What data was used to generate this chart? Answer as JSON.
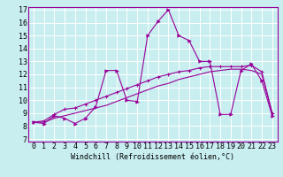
{
  "xlabel": "Windchill (Refroidissement éolien,°C)",
  "bg_color": "#c8eef0",
  "line_color": "#990099",
  "xlim": [
    -0.5,
    23.5
  ],
  "ylim": [
    6.8,
    17.2
  ],
  "xticks": [
    0,
    1,
    2,
    3,
    4,
    5,
    6,
    7,
    8,
    9,
    10,
    11,
    12,
    13,
    14,
    15,
    16,
    17,
    18,
    19,
    20,
    21,
    22,
    23
  ],
  "yticks": [
    7,
    8,
    9,
    10,
    11,
    12,
    13,
    14,
    15,
    16,
    17
  ],
  "series1_x": [
    0,
    1,
    2,
    3,
    4,
    5,
    6,
    7,
    8,
    9,
    10,
    11,
    12,
    13,
    14,
    15,
    16,
    17,
    18,
    19,
    20,
    21,
    22,
    23
  ],
  "series1_y": [
    8.3,
    8.2,
    8.8,
    8.6,
    8.2,
    8.6,
    9.5,
    12.3,
    12.3,
    10.0,
    9.9,
    15.0,
    16.1,
    17.0,
    15.0,
    14.6,
    13.0,
    13.0,
    8.9,
    8.9,
    12.3,
    12.8,
    11.5,
    8.8
  ],
  "series2_x": [
    0,
    1,
    2,
    3,
    4,
    5,
    6,
    7,
    8,
    9,
    10,
    11,
    12,
    13,
    14,
    15,
    16,
    17,
    18,
    19,
    20,
    21,
    22,
    23
  ],
  "series2_y": [
    8.3,
    8.4,
    8.9,
    9.3,
    9.4,
    9.7,
    10.0,
    10.3,
    10.6,
    10.9,
    11.2,
    11.5,
    11.8,
    12.0,
    12.2,
    12.3,
    12.5,
    12.6,
    12.6,
    12.6,
    12.6,
    12.7,
    12.2,
    9.0
  ],
  "series3_x": [
    0,
    1,
    2,
    3,
    4,
    5,
    6,
    7,
    8,
    9,
    10,
    11,
    12,
    13,
    14,
    15,
    16,
    17,
    18,
    19,
    20,
    21,
    22,
    23
  ],
  "series3_y": [
    8.3,
    8.3,
    8.6,
    8.8,
    9.0,
    9.2,
    9.4,
    9.6,
    9.9,
    10.2,
    10.5,
    10.8,
    11.1,
    11.3,
    11.6,
    11.8,
    12.0,
    12.2,
    12.3,
    12.4,
    12.4,
    12.3,
    12.0,
    9.0
  ],
  "tick_fontsize": 6,
  "xlabel_fontsize": 6
}
